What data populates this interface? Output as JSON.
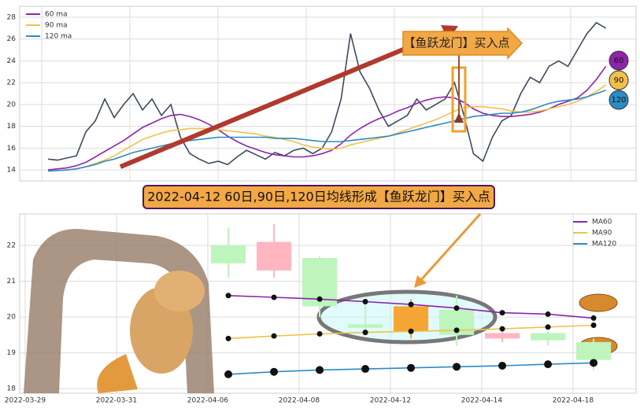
{
  "chart_data": [
    {
      "type": "line",
      "values": [
        15.0,
        14.9,
        15.1,
        15.3,
        17.5,
        18.5,
        20.5,
        18.8,
        20.0,
        21.0,
        19.5,
        20.5,
        19.0,
        20.0,
        17.0,
        15.5,
        15.0,
        14.6,
        14.8,
        14.5,
        15.2,
        15.8,
        15.4,
        15.0,
        15.6,
        15.3,
        15.8,
        16.0,
        15.5,
        16.0,
        17.5,
        20.5,
        26.5,
        23.0,
        21.5,
        19.5,
        18.0,
        18.5,
        19.0,
        20.5,
        19.5,
        20.0,
        20.5,
        22.0,
        19.0,
        15.5,
        14.8,
        17.0,
        18.5,
        19.0,
        21.0,
        22.5,
        22.0,
        23.5,
        24.0,
        23.5,
        25.0,
        26.5,
        27.5,
        27.0
      ],
      "color": "#3d4a5e",
      "series": [
        {
          "name": "60 ma",
          "color": "#8e24aa",
          "values": [
            14.0,
            14.1,
            14.2,
            14.4,
            14.7,
            15.2,
            15.7,
            16.2,
            16.7,
            17.3,
            17.9,
            18.3,
            18.7,
            19.0,
            19.1,
            18.9,
            18.6,
            18.2,
            17.7,
            17.1,
            16.6,
            16.2,
            15.9,
            15.6,
            15.4,
            15.3,
            15.2,
            15.2,
            15.3,
            15.5,
            15.8,
            16.4,
            17.2,
            17.8,
            18.3,
            18.7,
            19.0,
            19.4,
            19.7,
            20.1,
            20.4,
            20.6,
            20.7,
            20.6,
            20.2,
            19.6,
            19.2,
            19.0,
            18.9,
            18.9,
            19.0,
            19.1,
            19.3,
            19.6,
            20.0,
            20.3,
            20.6,
            21.3,
            22.3,
            23.5
          ]
        },
        {
          "name": "90 ma",
          "color": "#f0c04a",
          "values": [
            13.9,
            13.95,
            14.0,
            14.1,
            14.3,
            14.6,
            14.9,
            15.3,
            15.8,
            16.3,
            16.8,
            17.1,
            17.4,
            17.6,
            17.7,
            17.8,
            17.8,
            17.8,
            17.7,
            17.6,
            17.5,
            17.4,
            17.3,
            17.1,
            17.0,
            16.8,
            16.6,
            16.3,
            16.1,
            16.0,
            15.9,
            16.0,
            16.3,
            16.5,
            16.7,
            16.9,
            17.1,
            17.4,
            17.7,
            18.0,
            18.3,
            18.6,
            19.0,
            19.4,
            19.7,
            19.8,
            19.8,
            19.7,
            19.6,
            19.4,
            19.3,
            19.3,
            19.4,
            19.6,
            19.8,
            20.0,
            20.3,
            20.7,
            21.2,
            21.8
          ]
        },
        {
          "name": "120 ma",
          "color": "#2b8cc4",
          "values": [
            13.9,
            13.95,
            14.0,
            14.1,
            14.3,
            14.5,
            14.8,
            15.0,
            15.3,
            15.6,
            15.8,
            16.0,
            16.2,
            16.4,
            16.6,
            16.7,
            16.8,
            16.9,
            17.0,
            17.0,
            17.0,
            17.0,
            17.0,
            17.0,
            16.9,
            16.9,
            16.9,
            16.8,
            16.7,
            16.6,
            16.6,
            16.6,
            16.7,
            16.8,
            16.9,
            17.0,
            17.1,
            17.3,
            17.5,
            17.7,
            17.9,
            18.1,
            18.3,
            18.5,
            18.7,
            18.9,
            19.0,
            19.1,
            19.2,
            19.2,
            19.3,
            19.5,
            19.8,
            20.1,
            20.3,
            20.4,
            20.5,
            20.7,
            21.0,
            21.3
          ]
        }
      ],
      "xlim": [
        -3,
        62.2
      ],
      "ylim": [
        13,
        29
      ],
      "yticks": [
        14,
        16,
        18,
        20,
        22,
        24,
        26,
        28
      ],
      "grid": true,
      "legend": "upper left",
      "annotation": "【鱼跃龙门】买入点",
      "badges": [
        "60",
        "90",
        "120"
      ]
    },
    {
      "type": "candlestick",
      "title": "2022-04-12 60日,90日,120日均线形成【鱼跃龙门】买入点",
      "x": [
        4.45,
        5.45,
        6.45,
        7.45,
        8.45,
        9.45,
        10.45,
        11.45,
        12.45
      ],
      "open": [
        22.0,
        21.3,
        21.65,
        19.8,
        20.3,
        20.2,
        19.4,
        19.55,
        19.3
      ],
      "high": [
        22.5,
        22.6,
        21.7,
        20.4,
        20.5,
        20.6,
        19.7,
        19.6,
        19.4
      ],
      "low": [
        21.1,
        21.1,
        20.0,
        19.5,
        19.4,
        19.2,
        19.3,
        19.2,
        18.5
      ],
      "close": [
        21.5,
        22.1,
        20.3,
        19.7,
        19.6,
        19.5,
        19.55,
        19.35,
        18.8
      ],
      "colors": [
        "#bdf5bd",
        "#ffb6c1",
        "#bdf5bd",
        "#bdf5bd",
        "#f5a533",
        "#bdf5bd",
        "#ffb6c1",
        "#bdf5bd",
        "#bdf5bd"
      ],
      "series": [
        {
          "name": "MA60",
          "color": "#8e24aa",
          "values": [
            20.6,
            20.55,
            20.5,
            20.43,
            20.35,
            20.25,
            20.12,
            20.08,
            19.97
          ]
        },
        {
          "name": "MA90",
          "color": "#f0c04a",
          "values": [
            19.4,
            19.47,
            19.53,
            19.57,
            19.6,
            19.63,
            19.67,
            19.72,
            19.77
          ]
        },
        {
          "name": "MA120",
          "color": "#2b8cc4",
          "values": [
            18.4,
            18.47,
            18.52,
            18.55,
            18.58,
            18.61,
            18.64,
            18.68,
            18.72
          ]
        }
      ],
      "xlim": [
        -0.12,
        13.38
      ],
      "xticks": [
        {
          "value": 0,
          "label": "2022-03-29"
        },
        {
          "value": 2,
          "label": "2022-03-31"
        },
        {
          "value": 4,
          "label": "2022-04-06"
        },
        {
          "value": 6,
          "label": "2022-04-08"
        },
        {
          "value": 8,
          "label": "2022-04-12"
        },
        {
          "value": 10,
          "label": "2022-04-14"
        },
        {
          "value": 12,
          "label": "2022-04-18"
        }
      ],
      "ylim": [
        17.87,
        22.88
      ],
      "yticks": [
        18,
        19,
        20,
        21,
        22
      ],
      "grid": true,
      "legend": "upper right"
    }
  ]
}
